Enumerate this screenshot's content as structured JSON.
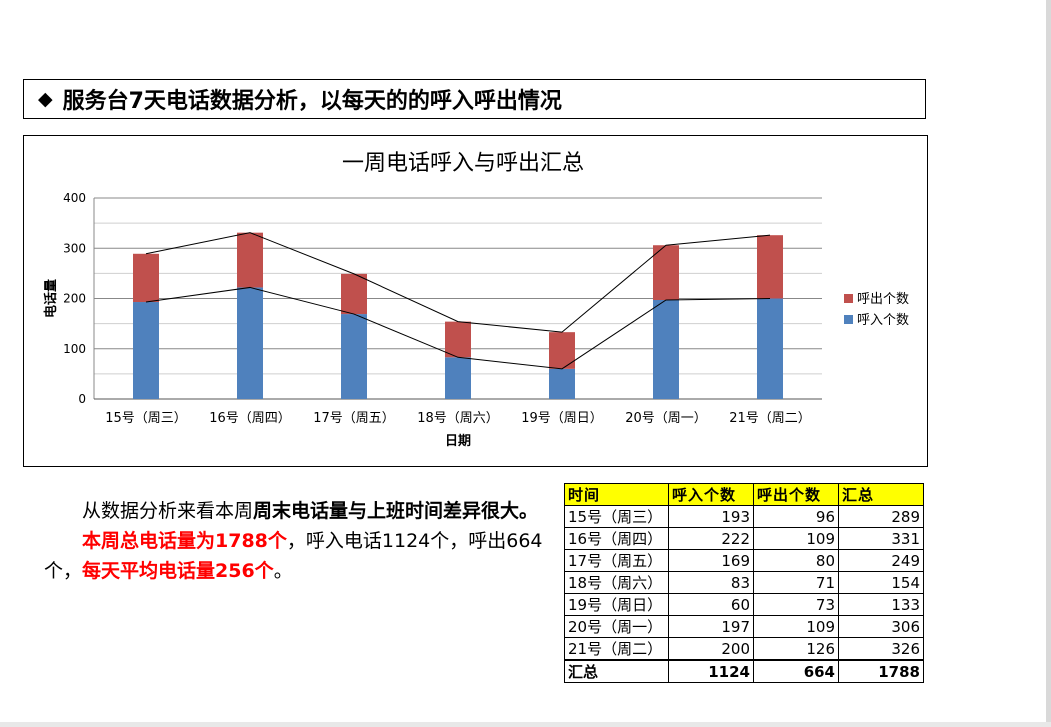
{
  "heading": {
    "icon": "diamond-icon",
    "text": "服务台7天电话数据分析，以每天的的呼入呼出情况"
  },
  "chart_data": {
    "type": "bar",
    "stacked": true,
    "title": "一周电话呼入与呼出汇总",
    "xlabel": "日期",
    "ylabel": "电话量",
    "ylim": [
      0,
      400
    ],
    "yticks": [
      0,
      100,
      200,
      300,
      400
    ],
    "grid": true,
    "legend_position": "right",
    "categories": [
      "15号（周三）",
      "16号（周四）",
      "17号（周五）",
      "18号（周六）",
      "19号（周日）",
      "20号（周一）",
      "21号（周二）"
    ],
    "series": [
      {
        "name": "呼入个数",
        "values": [
          193,
          222,
          169,
          83,
          60,
          197,
          200
        ],
        "color": "#4f81bd"
      },
      {
        "name": "呼出个数",
        "values": [
          96,
          109,
          80,
          71,
          73,
          109,
          126
        ],
        "color": "#c0504d"
      }
    ],
    "legend": [
      "呼出个数",
      "呼入个数"
    ],
    "trend_lines": "series lines connecting the stack tops"
  },
  "summary": {
    "p1_normal": "从数据分析来看本周",
    "p1_bold": "周末电话量与上班时间差异很大。",
    "p2_red1": "本周总电话量为1788个",
    "p2_normal1": "，呼入电话1124个，呼出664个，",
    "p2_red2": "每天平均电话量256个",
    "p2_normal2": "。"
  },
  "table": {
    "headers": [
      "时间",
      "呼入个数",
      "呼出个数",
      "汇总"
    ],
    "rows": [
      [
        "15号（周三）",
        "193",
        "96",
        "289"
      ],
      [
        "16号（周四）",
        "222",
        "109",
        "331"
      ],
      [
        "17号（周五）",
        "169",
        "80",
        "249"
      ],
      [
        "18号（周六）",
        "83",
        "71",
        "154"
      ],
      [
        "19号（周日）",
        "60",
        "73",
        "133"
      ],
      [
        "20号（周一）",
        "197",
        "109",
        "306"
      ],
      [
        "21号（周二）",
        "200",
        "126",
        "326"
      ]
    ],
    "total": [
      "汇总",
      "1124",
      "664",
      "1788"
    ]
  }
}
